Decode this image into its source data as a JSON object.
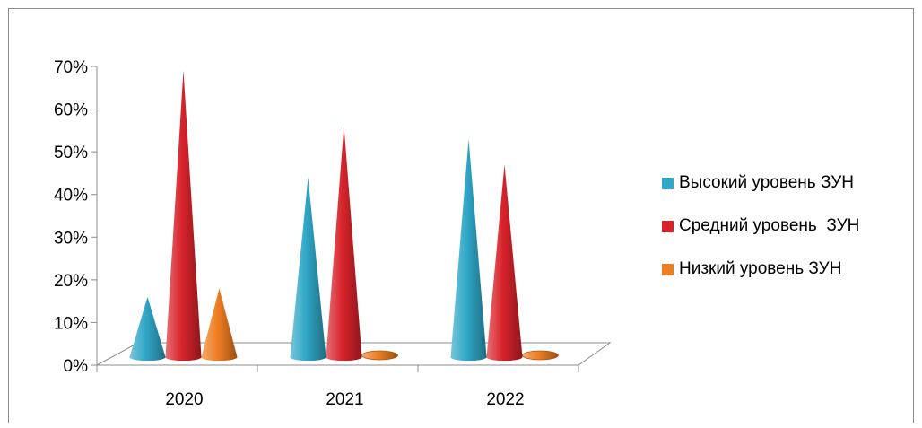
{
  "chart_data": {
    "type": "bar",
    "style": "3d-cone",
    "categories": [
      "2020",
      "2021",
      "2022"
    ],
    "series": [
      {
        "name": "Высокий уровень ЗУН",
        "color": "#2fa7c7",
        "values": [
          16,
          44,
          53
        ]
      },
      {
        "name": "Средний уровень  ЗУН",
        "color": "#d9232b",
        "values": [
          69,
          56,
          47
        ]
      },
      {
        "name": "Низкий уровень ЗУН",
        "color": "#ef7d22",
        "values": [
          18,
          1,
          1
        ]
      }
    ],
    "ylim": [
      0,
      70
    ],
    "yticks": [
      "0%",
      "10%",
      "20%",
      "30%",
      "40%",
      "50%",
      "60%",
      "70%"
    ],
    "grid": false,
    "legend_position": "right"
  }
}
